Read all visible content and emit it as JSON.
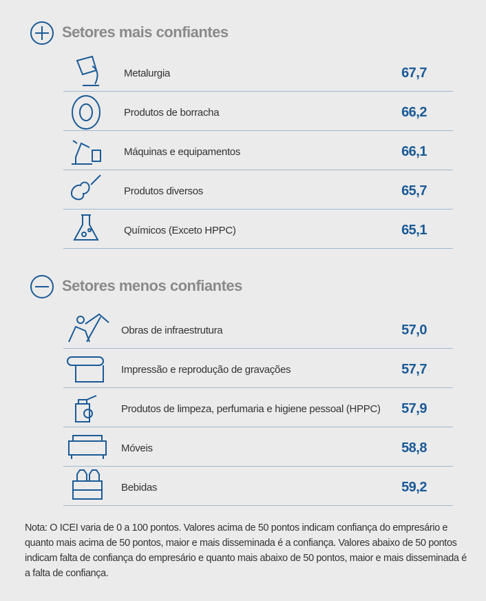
{
  "sections": [
    {
      "title": "Setores mais confiantes",
      "rows": [
        {
          "label": "Metalurgia",
          "value": "67,7"
        },
        {
          "label": "Produtos de borracha",
          "value": "66,2"
        },
        {
          "label": "Máquinas e equipamentos",
          "value": "66,1"
        },
        {
          "label": "Produtos diversos",
          "value": "65,7"
        },
        {
          "label": "Químicos (Exceto HPPC)",
          "value": "65,1"
        }
      ]
    },
    {
      "title": "Setores menos confiantes",
      "rows": [
        {
          "label": "Obras de infraestrutura",
          "value": "57,0"
        },
        {
          "label": "Impressão e reprodução de gravações",
          "value": "57,7"
        },
        {
          "label": "Produtos de limpeza, perfumaria e higiene pessoal (HPPC)",
          "value": "57,9"
        },
        {
          "label": "Móveis",
          "value": "58,8"
        },
        {
          "label": "Bebidas",
          "value": "59,2"
        }
      ]
    }
  ],
  "note": "Nota: O ICEI varia de 0 a 100 pontos. Valores acima de 50 pontos indicam confiança do empresário e quanto mais acima de 50 pontos, maior e mais disseminada é a confiança. Valores abaixo de 50 pontos indicam falta de confiança do empresário e quanto mais abaixo de 50 pontos, maior e mais disseminada é a falta de confiança."
}
